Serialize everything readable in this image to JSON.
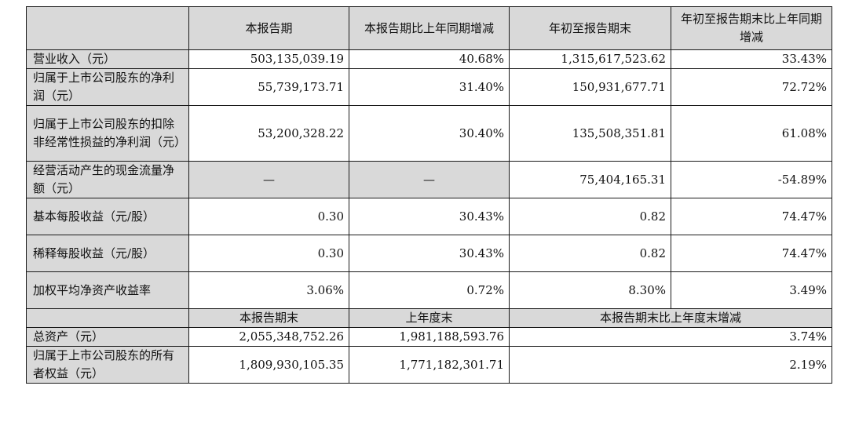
{
  "header": {
    "c1": "本报告期",
    "c2": "本报告期比上年同期增减",
    "c3": "年初至报告期末",
    "c4": "年初至报告期末比上年同期增减"
  },
  "rows": [
    {
      "label": "营业收入（元）",
      "v1": "503,135,039.19",
      "v2": "40.68%",
      "v3": "1,315,617,523.62",
      "v4": "33.43%"
    },
    {
      "label": "归属于上市公司股东的净利润（元）",
      "v1": "55,739,173.71",
      "v2": "31.40%",
      "v3": "150,931,677.71",
      "v4": "72.72%"
    },
    {
      "label": "归属于上市公司股东的扣除非经常性损益的净利润（元）",
      "v1": "53,200,328.22",
      "v2": "30.40%",
      "v3": "135,508,351.81",
      "v4": "61.08%"
    },
    {
      "label": "经营活动产生的现金流量净额（元）",
      "v1": "—",
      "v2": "—",
      "v3": "75,404,165.31",
      "v4": "-54.89%"
    },
    {
      "label": "基本每股收益（元/股）",
      "v1": "0.30",
      "v2": "30.43%",
      "v3": "0.82",
      "v4": "74.47%"
    },
    {
      "label": "稀释每股收益（元/股）",
      "v1": "0.30",
      "v2": "30.43%",
      "v3": "0.82",
      "v4": "74.47%"
    },
    {
      "label": "加权平均净资产收益率",
      "v1": "3.06%",
      "v2": "0.72%",
      "v3": "8.30%",
      "v4": "3.49%"
    }
  ],
  "header2": {
    "c1": "本报告期末",
    "c2": "上年度末",
    "c3": "本报告期末比上年度末增减"
  },
  "rows2": [
    {
      "label": "总资产（元）",
      "v1": "2,055,348,752.26",
      "v2": "1,981,188,593.76",
      "v3": "3.74%"
    },
    {
      "label": "归属于上市公司股东的所有者权益（元）",
      "v1": "1,809,930,105.35",
      "v2": "1,771,182,301.71",
      "v3": "2.19%"
    }
  ]
}
